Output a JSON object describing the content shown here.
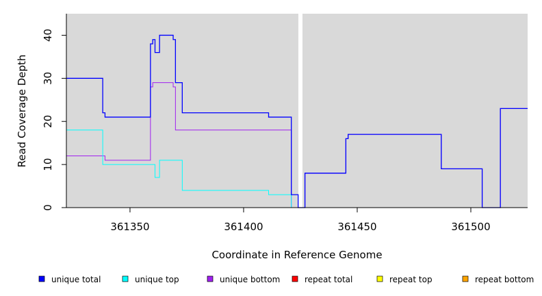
{
  "chart_data": {
    "type": "line",
    "step": true,
    "xlabel": "Coordinate in Reference Genome",
    "ylabel": "Read Coverage Depth",
    "xlim": [
      361322,
      361525
    ],
    "ylim": [
      0,
      45
    ],
    "x_ticks": [
      361350,
      361400,
      361450,
      361500
    ],
    "y_ticks": [
      0,
      10,
      20,
      30,
      40
    ],
    "background": "#d9d9d9",
    "gap_x": 361425,
    "legend_position": "bottom",
    "series": [
      {
        "name": "unique total",
        "color": "#0000ff",
        "points": [
          [
            361322,
            30
          ],
          [
            361338,
            22
          ],
          [
            361339,
            21
          ],
          [
            361359,
            38
          ],
          [
            361360,
            39
          ],
          [
            361361,
            36
          ],
          [
            361363,
            40
          ],
          [
            361369,
            39
          ],
          [
            361370,
            29
          ],
          [
            361373,
            22
          ],
          [
            361411,
            21
          ],
          [
            361421,
            3
          ],
          [
            361424,
            0
          ],
          [
            361427,
            8
          ],
          [
            361445,
            16
          ],
          [
            361446,
            17
          ],
          [
            361487,
            9
          ],
          [
            361505,
            0
          ],
          [
            361513,
            23
          ],
          [
            361525,
            23
          ]
        ]
      },
      {
        "name": "unique top",
        "color": "#00ffff",
        "points": [
          [
            361322,
            18
          ],
          [
            361338,
            10
          ],
          [
            361361,
            7
          ],
          [
            361363,
            11
          ],
          [
            361373,
            4
          ],
          [
            361411,
            3
          ],
          [
            361421,
            0
          ],
          [
            361525,
            0
          ]
        ]
      },
      {
        "name": "unique bottom",
        "color": "#a020f0",
        "points": [
          [
            361322,
            12
          ],
          [
            361339,
            11
          ],
          [
            361359,
            28
          ],
          [
            361360,
            29
          ],
          [
            361369,
            28
          ],
          [
            361370,
            18
          ],
          [
            361421,
            0
          ],
          [
            361424,
            0
          ],
          [
            361427,
            8
          ],
          [
            361445,
            16
          ],
          [
            361446,
            17
          ],
          [
            361487,
            9
          ],
          [
            361505,
            0
          ],
          [
            361513,
            23
          ],
          [
            361525,
            23
          ]
        ]
      },
      {
        "name": "repeat total",
        "color": "#ff0000",
        "points": [
          [
            361322,
            0
          ],
          [
            361525,
            0
          ]
        ]
      },
      {
        "name": "repeat top",
        "color": "#ffff00",
        "points": [
          [
            361322,
            0
          ],
          [
            361525,
            0
          ]
        ]
      },
      {
        "name": "repeat bottom",
        "color": "#ffa500",
        "points": [
          [
            361322,
            0
          ],
          [
            361424,
            0
          ]
        ]
      }
    ]
  }
}
